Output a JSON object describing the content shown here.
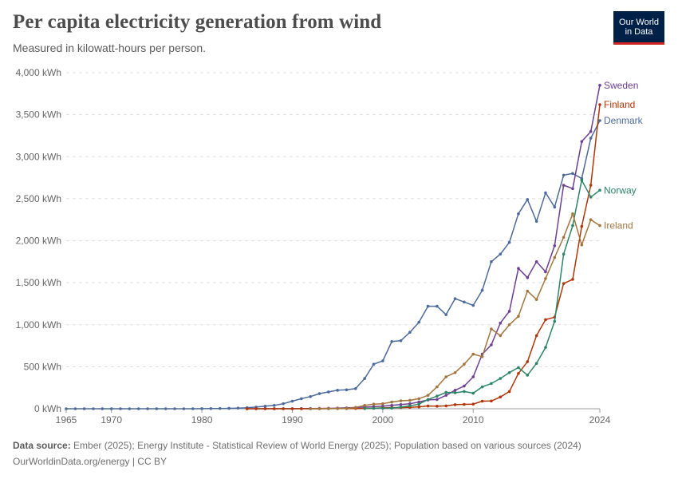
{
  "header": {
    "title": "Per capita electricity generation from wind",
    "subtitle": "Measured in kilowatt-hours per person.",
    "logo_line1": "Our World",
    "logo_line2": "in Data"
  },
  "footer": {
    "source_label": "Data source:",
    "source_text": " Ember (2025); Energy Institute - Statistical Review of World Energy (2025); Population based on various sources (2024)",
    "link_text": "OurWorldinData.org/energy | CC BY"
  },
  "colors": {
    "brand_navy": "#002147",
    "brand_red": "#ce261e"
  },
  "chart_data": {
    "type": "line",
    "title": "Per capita electricity generation from wind",
    "ylabel": "",
    "xlabel": "",
    "unit": "kWh",
    "xlim": [
      1965,
      2024
    ],
    "ylim": [
      0,
      4000
    ],
    "x_ticks": [
      1965,
      1970,
      1980,
      1990,
      2000,
      2010,
      2024
    ],
    "y_ticks": [
      0,
      500,
      1000,
      1500,
      2000,
      2500,
      3000,
      3500,
      4000
    ],
    "y_tick_labels": [
      "0 kWh",
      "500 kWh",
      "1,000 kWh",
      "1,500 kWh",
      "2,000 kWh",
      "2,500 kWh",
      "3,000 kWh",
      "3,500 kWh",
      "4,000 kWh"
    ],
    "grid": "horizontal dashed",
    "legend": "inline labels at right end of lines",
    "series": [
      {
        "name": "Denmark",
        "color": "#4c6a9c",
        "x": [
          1965,
          1966,
          1967,
          1968,
          1969,
          1970,
          1971,
          1972,
          1973,
          1974,
          1975,
          1976,
          1977,
          1978,
          1979,
          1980,
          1981,
          1982,
          1983,
          1984,
          1985,
          1986,
          1987,
          1988,
          1989,
          1990,
          1991,
          1992,
          1993,
          1994,
          1995,
          1996,
          1997,
          1998,
          1999,
          2000,
          2001,
          2002,
          2003,
          2004,
          2005,
          2006,
          2007,
          2008,
          2009,
          2010,
          2011,
          2012,
          2013,
          2014,
          2015,
          2016,
          2017,
          2018,
          2019,
          2020,
          2021,
          2022,
          2023,
          2024
        ],
        "values": [
          0,
          0,
          0,
          0,
          0,
          0,
          0,
          0,
          0,
          0,
          0,
          0,
          0,
          0,
          0,
          1,
          2,
          3,
          5,
          8,
          12,
          20,
          30,
          40,
          60,
          90,
          120,
          145,
          180,
          200,
          220,
          225,
          240,
          360,
          530,
          570,
          800,
          810,
          910,
          1030,
          1220,
          1220,
          1120,
          1310,
          1270,
          1230,
          1410,
          1750,
          1840,
          1980,
          2320,
          2490,
          2230,
          2570,
          2400,
          2780,
          2800,
          2740,
          3220,
          3430
        ]
      },
      {
        "name": "Sweden",
        "color": "#6d3e91",
        "x": [
          1985,
          1986,
          1987,
          1988,
          1989,
          1990,
          1991,
          1992,
          1993,
          1994,
          1995,
          1996,
          1997,
          1998,
          1999,
          2000,
          2001,
          2002,
          2003,
          2004,
          2005,
          2006,
          2007,
          2008,
          2009,
          2010,
          2011,
          2012,
          2013,
          2014,
          2015,
          2016,
          2017,
          2018,
          2019,
          2020,
          2021,
          2022,
          2023,
          2024
        ],
        "values": [
          0,
          0,
          1,
          1,
          1,
          1,
          2,
          3,
          4,
          5,
          8,
          10,
          15,
          20,
          25,
          30,
          40,
          50,
          60,
          80,
          105,
          110,
          160,
          220,
          270,
          380,
          650,
          760,
          1020,
          1160,
          1670,
          1560,
          1750,
          1630,
          1940,
          2660,
          2620,
          3180,
          3300,
          3850
        ]
      },
      {
        "name": "Finland",
        "color": "#b13507",
        "x": [
          1985,
          1986,
          1987,
          1988,
          1989,
          1990,
          1991,
          1992,
          1993,
          1994,
          1995,
          1996,
          1997,
          1998,
          1999,
          2000,
          2001,
          2002,
          2003,
          2004,
          2005,
          2006,
          2007,
          2008,
          2009,
          2010,
          2011,
          2012,
          2013,
          2014,
          2015,
          2016,
          2017,
          2018,
          2019,
          2020,
          2021,
          2022,
          2023,
          2024
        ],
        "values": [
          0,
          0,
          0,
          0,
          0,
          0,
          0,
          0,
          0,
          1,
          2,
          2,
          3,
          4,
          6,
          10,
          13,
          13,
          17,
          23,
          33,
          30,
          34,
          48,
          52,
          55,
          90,
          92,
          140,
          205,
          420,
          560,
          870,
          1060,
          1090,
          1490,
          1540,
          2170,
          2660,
          3620
        ]
      },
      {
        "name": "Norway",
        "color": "#2c8465",
        "x": [
          1998,
          1999,
          2000,
          2001,
          2002,
          2003,
          2004,
          2005,
          2006,
          2007,
          2008,
          2009,
          2010,
          2011,
          2012,
          2013,
          2014,
          2015,
          2016,
          2017,
          2018,
          2019,
          2020,
          2021,
          2022,
          2023,
          2024
        ],
        "values": [
          3,
          6,
          7,
          7,
          20,
          35,
          55,
          110,
          150,
          195,
          190,
          205,
          185,
          260,
          300,
          360,
          430,
          490,
          400,
          540,
          730,
          1040,
          1840,
          2180,
          2720,
          2520,
          2600
        ]
      },
      {
        "name": "Ireland",
        "color": "#a2753e",
        "x": [
          1992,
          1993,
          1994,
          1995,
          1996,
          1997,
          1998,
          1999,
          2000,
          2001,
          2002,
          2003,
          2004,
          2005,
          2006,
          2007,
          2008,
          2009,
          2010,
          2011,
          2012,
          2013,
          2014,
          2015,
          2016,
          2017,
          2018,
          2019,
          2020,
          2021,
          2022,
          2023,
          2024
        ],
        "values": [
          0,
          1,
          3,
          4,
          5,
          15,
          40,
          55,
          60,
          80,
          95,
          100,
          120,
          160,
          260,
          380,
          430,
          530,
          650,
          620,
          950,
          870,
          1000,
          1100,
          1400,
          1300,
          1550,
          1800,
          2040,
          2320,
          1950,
          2250,
          2180
        ]
      }
    ]
  }
}
